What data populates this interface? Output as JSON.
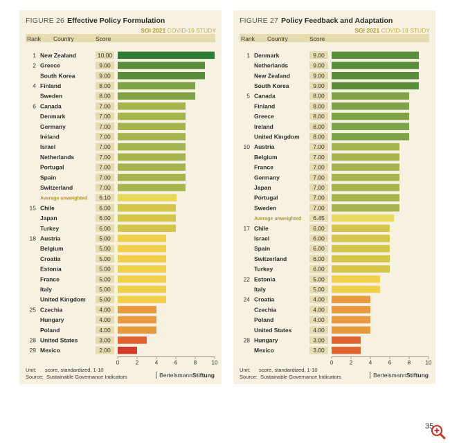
{
  "page_number": "35",
  "chart_data": [
    {
      "type": "bar",
      "figure_label": "FIGURE 26",
      "title": "Effective Policy Formulation",
      "study": "SGI 2021",
      "study_suffix": "COVID-19 STUDY",
      "columns": {
        "rank": "Rank",
        "country": "Country",
        "score": "Score"
      },
      "xlim": [
        0,
        10
      ],
      "xticks": [
        "0",
        "2",
        "4",
        "6",
        "8",
        "10"
      ],
      "unit_label": "Unit:",
      "unit": "score, standardized, 1-10",
      "source_label": "Source:",
      "source": "Sustainable Governance Indicators",
      "brand_light": "Bertelsmann",
      "brand_bold": "Stiftung",
      "rows": [
        {
          "rank": "1",
          "country": "New Zealand",
          "label": "10.00",
          "value": 10.0
        },
        {
          "rank": "2",
          "country": "Greece",
          "label": "9.00",
          "value": 9.0
        },
        {
          "rank": "",
          "country": "South Korea",
          "label": "9.00",
          "value": 9.0
        },
        {
          "rank": "4",
          "country": "Finland",
          "label": "8.00",
          "value": 8.0
        },
        {
          "rank": "",
          "country": "Sweden",
          "label": "8.00",
          "value": 8.0
        },
        {
          "rank": "6",
          "country": "Canada",
          "label": "7.00",
          "value": 7.0
        },
        {
          "rank": "",
          "country": "Denmark",
          "label": "7.00",
          "value": 7.0
        },
        {
          "rank": "",
          "country": "Germany",
          "label": "7.00",
          "value": 7.0
        },
        {
          "rank": "",
          "country": "Ireland",
          "label": "7.00",
          "value": 7.0
        },
        {
          "rank": "",
          "country": "Israel",
          "label": "7.00",
          "value": 7.0
        },
        {
          "rank": "",
          "country": "Netherlands",
          "label": "7.00",
          "value": 7.0
        },
        {
          "rank": "",
          "country": "Portugal",
          "label": "7.00",
          "value": 7.0
        },
        {
          "rank": "",
          "country": "Spain",
          "label": "7.00",
          "value": 7.0
        },
        {
          "rank": "",
          "country": "Switzerland",
          "label": "7.00",
          "value": 7.0
        },
        {
          "rank": "",
          "country": "Average unweighted",
          "label": "6.10",
          "value": 6.1,
          "average": true
        },
        {
          "rank": "15",
          "country": "Chile",
          "label": "6.00",
          "value": 6.0
        },
        {
          "rank": "",
          "country": "Japan",
          "label": "6.00",
          "value": 6.0
        },
        {
          "rank": "",
          "country": "Turkey",
          "label": "6.00",
          "value": 6.0
        },
        {
          "rank": "18",
          "country": "Austria",
          "label": "5.00",
          "value": 5.0
        },
        {
          "rank": "",
          "country": "Belgium",
          "label": "5.00",
          "value": 5.0
        },
        {
          "rank": "",
          "country": "Croatia",
          "label": "5.00",
          "value": 5.0
        },
        {
          "rank": "",
          "country": "Estonia",
          "label": "5.00",
          "value": 5.0
        },
        {
          "rank": "",
          "country": "France",
          "label": "5.00",
          "value": 5.0
        },
        {
          "rank": "",
          "country": "Italy",
          "label": "5.00",
          "value": 5.0
        },
        {
          "rank": "",
          "country": "United Kingdom",
          "label": "5.00",
          "value": 5.0
        },
        {
          "rank": "25",
          "country": "Czechia",
          "label": "4.00",
          "value": 4.0
        },
        {
          "rank": "",
          "country": "Hungary",
          "label": "4.00",
          "value": 4.0
        },
        {
          "rank": "",
          "country": "Poland",
          "label": "4.00",
          "value": 4.0
        },
        {
          "rank": "28",
          "country": "United States",
          "label": "3.00",
          "value": 3.0
        },
        {
          "rank": "29",
          "country": "Mexico",
          "label": "2.00",
          "value": 2.0
        }
      ]
    },
    {
      "type": "bar",
      "figure_label": "FIGURE 27",
      "title": "Policy Feedback and Adaptation",
      "study": "SGI 2021",
      "study_suffix": "COVID-19 STUDY",
      "columns": {
        "rank": "Rank",
        "country": "Country",
        "score": "Score"
      },
      "xlim": [
        0,
        10
      ],
      "xticks": [
        "0",
        "2",
        "4",
        "6",
        "8",
        "10"
      ],
      "unit_label": "Unit:",
      "unit": "score, standardized, 1-10",
      "source_label": "Source:",
      "source": "Sustainable Governance Indicators",
      "brand_light": "Bertelsmann",
      "brand_bold": "Stiftung",
      "rows": [
        {
          "rank": "1",
          "country": "Denmark",
          "label": "9.00",
          "value": 9.0
        },
        {
          "rank": "",
          "country": "Netherlands",
          "label": "9.00",
          "value": 9.0
        },
        {
          "rank": "",
          "country": "New Zealand",
          "label": "9.00",
          "value": 9.0
        },
        {
          "rank": "",
          "country": "South Korea",
          "label": "9.00",
          "value": 9.0
        },
        {
          "rank": "5",
          "country": "Canada",
          "label": "8.00",
          "value": 8.0
        },
        {
          "rank": "",
          "country": "Finland",
          "label": "8.00",
          "value": 8.0
        },
        {
          "rank": "",
          "country": "Greece",
          "label": "8.00",
          "value": 8.0
        },
        {
          "rank": "",
          "country": "Ireland",
          "label": "8.00",
          "value": 8.0
        },
        {
          "rank": "",
          "country": "United Kingdom",
          "label": "8.00",
          "value": 8.0
        },
        {
          "rank": "10",
          "country": "Austria",
          "label": "7.00",
          "value": 7.0
        },
        {
          "rank": "",
          "country": "Belgium",
          "label": "7.00",
          "value": 7.0
        },
        {
          "rank": "",
          "country": "France",
          "label": "7.00",
          "value": 7.0
        },
        {
          "rank": "",
          "country": "Germany",
          "label": "7.00",
          "value": 7.0
        },
        {
          "rank": "",
          "country": "Japan",
          "label": "7.00",
          "value": 7.0
        },
        {
          "rank": "",
          "country": "Portugal",
          "label": "7.00",
          "value": 7.0
        },
        {
          "rank": "",
          "country": "Sweden",
          "label": "7.00",
          "value": 7.0
        },
        {
          "rank": "",
          "country": "Average unweighted",
          "label": "6.45",
          "value": 6.45,
          "average": true
        },
        {
          "rank": "17",
          "country": "Chile",
          "label": "6.00",
          "value": 6.0
        },
        {
          "rank": "",
          "country": "Israel",
          "label": "6.00",
          "value": 6.0
        },
        {
          "rank": "",
          "country": "Spain",
          "label": "6.00",
          "value": 6.0
        },
        {
          "rank": "",
          "country": "Switzerland",
          "label": "6.00",
          "value": 6.0
        },
        {
          "rank": "",
          "country": "Turkey",
          "label": "6.00",
          "value": 6.0
        },
        {
          "rank": "22",
          "country": "Estonia",
          "label": "5.00",
          "value": 5.0
        },
        {
          "rank": "",
          "country": "Italy",
          "label": "5.00",
          "value": 5.0
        },
        {
          "rank": "24",
          "country": "Croatia",
          "label": "4.00",
          "value": 4.0
        },
        {
          "rank": "",
          "country": "Czechia",
          "label": "4.00",
          "value": 4.0
        },
        {
          "rank": "",
          "country": "Poland",
          "label": "4.00",
          "value": 4.0
        },
        {
          "rank": "",
          "country": "United States",
          "label": "4.00",
          "value": 4.0
        },
        {
          "rank": "28",
          "country": "Hungary",
          "label": "3.00",
          "value": 3.0
        },
        {
          "rank": "",
          "country": "Mexico",
          "label": "3.00",
          "value": 3.0
        }
      ]
    }
  ],
  "colors": {
    "10": "#2e7b36",
    "9": "#5a8d3a",
    "8": "#7ea246",
    "7": "#a3b54c",
    "6": "#d3c64a",
    "avg": "#e5d85a",
    "5": "#f2cf4b",
    "4": "#e79a3f",
    "3": "#de6434",
    "2": "#d23b2a",
    "label_bg": "#e6dcb0",
    "avg_text": "#b3972c"
  }
}
